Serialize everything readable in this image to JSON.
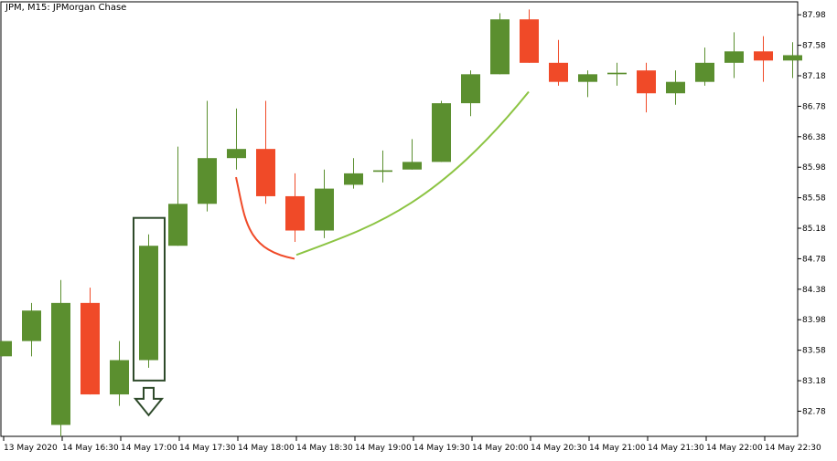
{
  "chart_data": {
    "type": "candlestick",
    "title": "JPM, M15:  JPMorgan Chase",
    "ylim": [
      82.45,
      88.15
    ],
    "y_ticks": [
      "82.78",
      "83.18",
      "83.58",
      "83.98",
      "84.38",
      "84.78",
      "85.18",
      "85.58",
      "85.98",
      "86.38",
      "86.78",
      "87.18",
      "87.58",
      "87.98"
    ],
    "x_labels": [
      "13 May 2020",
      "14 May 16:30",
      "14 May 17:00",
      "14 May 17:30",
      "14 May 18:00",
      "14 May 18:30",
      "14 May 19:00",
      "14 May 19:30",
      "14 May 20:00",
      "14 May 20:30",
      "14 May 21:00",
      "14 May 21:30",
      "14 May 22:00",
      "14 May 22:30"
    ],
    "colors": {
      "bull": "#5b8f2f",
      "bear": "#f04a28",
      "highlight": "#2e4a2a",
      "up_curve": "#8cc443",
      "down_curve": "#f04a28"
    },
    "candles": [
      {
        "o": 83.5,
        "h": 83.7,
        "l": 83.5,
        "c": 83.7
      },
      {
        "o": 83.7,
        "h": 84.2,
        "l": 83.5,
        "c": 84.1
      },
      {
        "o": 82.6,
        "h": 84.5,
        "l": 82.45,
        "c": 84.2
      },
      {
        "o": 84.2,
        "h": 84.4,
        "l": 83.0,
        "c": 83.0
      },
      {
        "o": 83.0,
        "h": 83.7,
        "l": 82.85,
        "c": 83.45
      },
      {
        "o": 83.45,
        "h": 85.1,
        "l": 83.35,
        "c": 84.95
      },
      {
        "o": 84.95,
        "h": 86.25,
        "l": 84.95,
        "c": 85.5
      },
      {
        "o": 85.5,
        "h": 86.85,
        "l": 85.4,
        "c": 86.1
      },
      {
        "o": 86.1,
        "h": 86.75,
        "l": 85.95,
        "c": 86.22
      },
      {
        "o": 86.22,
        "h": 86.85,
        "l": 85.5,
        "c": 85.6
      },
      {
        "o": 85.6,
        "h": 85.9,
        "l": 85.0,
        "c": 85.15
      },
      {
        "o": 85.15,
        "h": 85.95,
        "l": 85.05,
        "c": 85.7
      },
      {
        "o": 85.75,
        "h": 86.1,
        "l": 85.7,
        "c": 85.9
      },
      {
        "o": 85.92,
        "h": 86.2,
        "l": 85.78,
        "c": 85.94
      },
      {
        "o": 85.95,
        "h": 86.35,
        "l": 85.95,
        "c": 86.05
      },
      {
        "o": 86.05,
        "h": 86.85,
        "l": 86.05,
        "c": 86.82
      },
      {
        "o": 86.82,
        "h": 87.25,
        "l": 86.65,
        "c": 87.2
      },
      {
        "o": 87.2,
        "h": 88.0,
        "l": 87.2,
        "c": 87.92
      },
      {
        "o": 87.92,
        "h": 88.05,
        "l": 87.35,
        "c": 87.35
      },
      {
        "o": 87.35,
        "h": 87.65,
        "l": 87.05,
        "c": 87.1
      },
      {
        "o": 87.1,
        "h": 87.25,
        "l": 86.9,
        "c": 87.2
      },
      {
        "o": 87.2,
        "h": 87.35,
        "l": 87.05,
        "c": 87.22
      },
      {
        "o": 87.25,
        "h": 87.35,
        "l": 86.7,
        "c": 86.95
      },
      {
        "o": 86.95,
        "h": 87.25,
        "l": 86.8,
        "c": 87.1
      },
      {
        "o": 87.1,
        "h": 87.55,
        "l": 87.05,
        "c": 87.35
      },
      {
        "o": 87.35,
        "h": 87.75,
        "l": 87.15,
        "c": 87.5
      },
      {
        "o": 87.5,
        "h": 87.7,
        "l": 87.1,
        "c": 87.38
      },
      {
        "o": 87.38,
        "h": 87.62,
        "l": 87.15,
        "c": 87.45
      }
    ],
    "highlighted_candle": 5,
    "annotations": {
      "arrow": "down",
      "down_curve_candles": [
        8,
        10
      ],
      "up_curve_candles": [
        10,
        18
      ]
    },
    "grid": false
  }
}
